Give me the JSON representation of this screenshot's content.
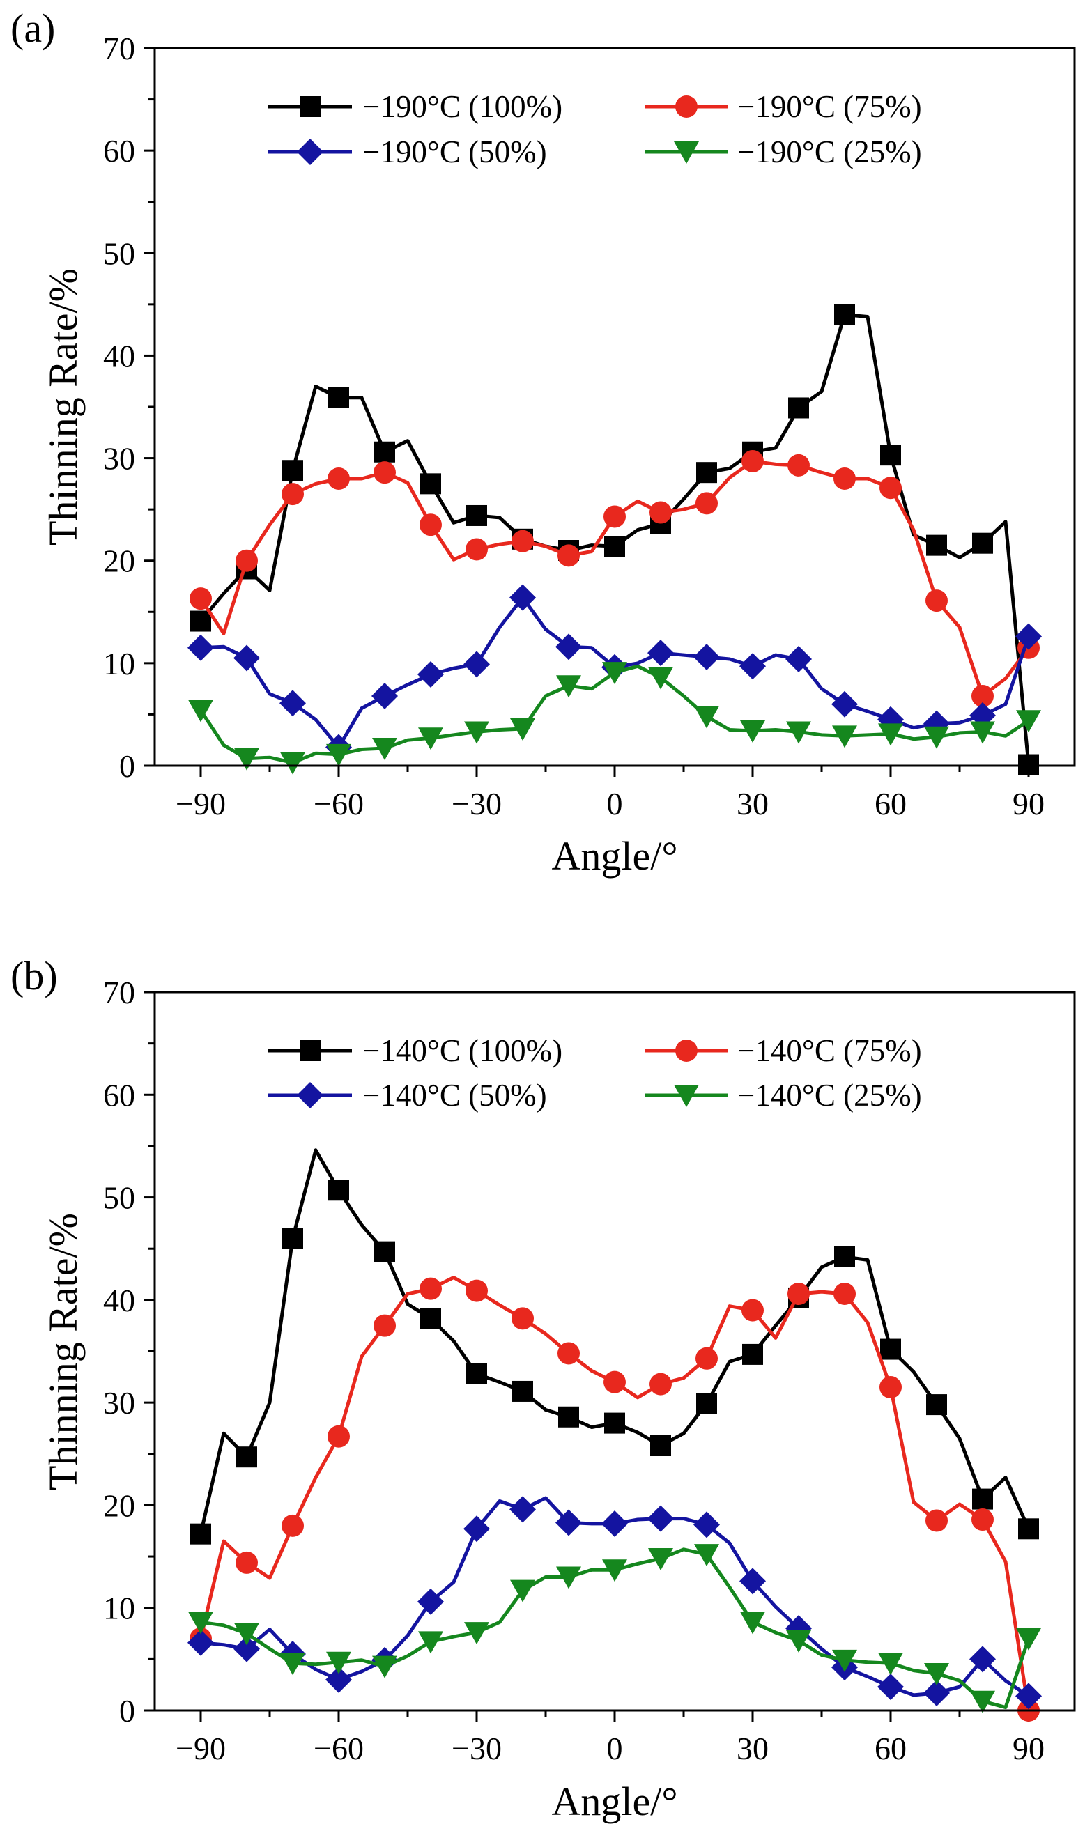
{
  "colors": {
    "series1": "#000000",
    "series2": "#e8281e",
    "series3": "#1414a0",
    "series4": "#15871e"
  },
  "chart_data": [
    {
      "type": "line",
      "panel_label": "(a)",
      "xlabel": "Angle/°",
      "ylabel": "Thinning Rate/%",
      "xlim": [
        -100,
        100
      ],
      "ylim": [
        0,
        70
      ],
      "xticks": [
        -90,
        -60,
        -30,
        0,
        30,
        60,
        90
      ],
      "xtick_labels": [
        "−90",
        "−60",
        "−30",
        "0",
        "30",
        "60",
        "90"
      ],
      "yticks": [
        0,
        10,
        20,
        30,
        40,
        50,
        60,
        70
      ],
      "ytick_labels": [
        "0",
        "10",
        "20",
        "30",
        "40",
        "50",
        "60",
        "70"
      ],
      "legend_position": "top",
      "series": [
        {
          "name": "−190°C (100%)",
          "color": "#000000",
          "marker": "square",
          "x": [
            -90,
            -85,
            -80,
            -75,
            -70,
            -65,
            -60,
            -55,
            -50,
            -45,
            -40,
            -35,
            -30,
            -25,
            -20,
            -15,
            -10,
            -5,
            0,
            5,
            10,
            15,
            20,
            25,
            30,
            35,
            40,
            45,
            50,
            55,
            60,
            65,
            70,
            75,
            80,
            85,
            90
          ],
          "y": [
            14.1,
            16.8,
            19.2,
            17.1,
            28.8,
            37.0,
            35.9,
            35.9,
            30.6,
            31.7,
            27.5,
            23.7,
            24.4,
            24.2,
            22.1,
            21.4,
            21.0,
            21.5,
            21.4,
            23.0,
            23.6,
            26.0,
            28.6,
            29.0,
            30.6,
            31.0,
            34.9,
            36.5,
            44.0,
            43.8,
            30.3,
            22.5,
            21.5,
            20.3,
            21.7,
            23.8,
            0.1
          ],
          "marker_x": [
            -90,
            -80,
            -70,
            -60,
            -50,
            -40,
            -30,
            -20,
            -10,
            0,
            10,
            20,
            30,
            40,
            50,
            60,
            70,
            80,
            90
          ]
        },
        {
          "name": "−190°C (75%)",
          "color": "#e8281e",
          "marker": "circle",
          "x": [
            -90,
            -85,
            -80,
            -75,
            -70,
            -65,
            -60,
            -55,
            -50,
            -45,
            -40,
            -35,
            -30,
            -25,
            -20,
            -15,
            -10,
            -5,
            0,
            5,
            10,
            15,
            20,
            25,
            30,
            35,
            40,
            45,
            50,
            55,
            60,
            65,
            70,
            75,
            80,
            85,
            90
          ],
          "y": [
            16.3,
            12.9,
            20.0,
            23.5,
            26.5,
            27.5,
            28.0,
            28.0,
            28.6,
            27.6,
            23.5,
            20.1,
            21.1,
            21.6,
            21.9,
            21.4,
            20.5,
            20.9,
            24.3,
            25.8,
            24.7,
            25.0,
            25.6,
            28.1,
            29.7,
            29.4,
            29.3,
            28.6,
            28.0,
            28.0,
            27.1,
            23.0,
            16.1,
            13.5,
            6.8,
            8.5,
            11.5
          ],
          "marker_x": [
            -90,
            -80,
            -70,
            -60,
            -50,
            -40,
            -30,
            -20,
            -10,
            0,
            10,
            20,
            30,
            40,
            50,
            60,
            70,
            80,
            90
          ]
        },
        {
          "name": "−190°C (50%)",
          "color": "#1414a0",
          "marker": "diamond",
          "x": [
            -90,
            -85,
            -80,
            -75,
            -70,
            -65,
            -60,
            -55,
            -50,
            -45,
            -40,
            -35,
            -30,
            -25,
            -20,
            -15,
            -10,
            -5,
            0,
            5,
            10,
            15,
            20,
            25,
            30,
            35,
            40,
            45,
            50,
            55,
            60,
            65,
            70,
            75,
            80,
            85,
            90
          ],
          "y": [
            11.5,
            11.6,
            10.5,
            7.0,
            6.1,
            4.5,
            1.8,
            5.6,
            6.8,
            7.9,
            8.9,
            9.5,
            9.9,
            13.5,
            16.4,
            13.3,
            11.6,
            11.5,
            9.6,
            10.0,
            11.0,
            10.8,
            10.6,
            10.4,
            9.7,
            10.8,
            10.4,
            7.5,
            6.0,
            5.3,
            4.5,
            3.7,
            4.1,
            4.2,
            4.9,
            6.0,
            12.6
          ],
          "marker_x": [
            -90,
            -80,
            -70,
            -60,
            -50,
            -40,
            -30,
            -20,
            -10,
            0,
            10,
            20,
            30,
            40,
            50,
            60,
            70,
            80,
            90
          ]
        },
        {
          "name": "−190°C (25%)",
          "color": "#15871e",
          "marker": "triangle-down",
          "x": [
            -90,
            -85,
            -80,
            -75,
            -70,
            -65,
            -60,
            -55,
            -50,
            -45,
            -40,
            -35,
            -30,
            -25,
            -20,
            -15,
            -10,
            -5,
            0,
            5,
            10,
            15,
            20,
            25,
            30,
            35,
            40,
            45,
            50,
            55,
            60,
            65,
            70,
            75,
            80,
            85,
            90
          ],
          "y": [
            5.4,
            2.0,
            0.7,
            0.8,
            0.3,
            1.2,
            1.1,
            1.6,
            1.7,
            2.5,
            2.7,
            3.0,
            3.3,
            3.5,
            3.6,
            6.8,
            7.8,
            7.5,
            9.1,
            9.7,
            8.6,
            6.8,
            4.8,
            3.5,
            3.4,
            3.5,
            3.3,
            3.0,
            2.9,
            3.0,
            3.1,
            2.6,
            2.8,
            3.2,
            3.3,
            2.9,
            4.4
          ],
          "marker_x": [
            -90,
            -80,
            -70,
            -60,
            -50,
            -40,
            -30,
            -20,
            -10,
            0,
            10,
            20,
            30,
            40,
            50,
            60,
            70,
            80,
            90
          ]
        }
      ]
    },
    {
      "type": "line",
      "panel_label": "(b)",
      "xlabel": "Angle/°",
      "ylabel": "Thinning Rate/%",
      "xlim": [
        -100,
        100
      ],
      "ylim": [
        0,
        70
      ],
      "xticks": [
        -90,
        -60,
        -30,
        0,
        30,
        60,
        90
      ],
      "xtick_labels": [
        "−90",
        "−60",
        "−30",
        "0",
        "30",
        "60",
        "90"
      ],
      "yticks": [
        0,
        10,
        20,
        30,
        40,
        50,
        60,
        70
      ],
      "ytick_labels": [
        "0",
        "10",
        "20",
        "30",
        "40",
        "50",
        "60",
        "70"
      ],
      "legend_position": "top",
      "series": [
        {
          "name": "−140°C (100%)",
          "color": "#000000",
          "marker": "square",
          "x": [
            -90,
            -85,
            -80,
            -75,
            -70,
            -65,
            -60,
            -55,
            -50,
            -45,
            -40,
            -35,
            -30,
            -25,
            -20,
            -15,
            -10,
            -5,
            0,
            5,
            10,
            15,
            20,
            25,
            30,
            35,
            40,
            45,
            50,
            55,
            60,
            65,
            70,
            75,
            80,
            85,
            90
          ],
          "y": [
            17.2,
            27.0,
            24.7,
            30.0,
            46.0,
            54.6,
            50.7,
            47.3,
            44.7,
            39.6,
            38.2,
            36.0,
            32.8,
            32.0,
            31.1,
            29.3,
            28.6,
            27.6,
            28.0,
            27.1,
            25.8,
            27.0,
            29.9,
            34.0,
            34.7,
            37.5,
            40.2,
            43.2,
            44.2,
            43.9,
            35.2,
            33.0,
            29.8,
            26.5,
            20.6,
            22.7,
            17.7
          ],
          "marker_x": [
            -90,
            -80,
            -70,
            -60,
            -50,
            -40,
            -30,
            -20,
            -10,
            0,
            10,
            20,
            30,
            40,
            50,
            60,
            70,
            80,
            90
          ]
        },
        {
          "name": "−140°C (75%)",
          "color": "#e8281e",
          "marker": "circle",
          "x": [
            -90,
            -85,
            -80,
            -75,
            -70,
            -65,
            -60,
            -55,
            -50,
            -45,
            -40,
            -35,
            -30,
            -25,
            -20,
            -15,
            -10,
            -5,
            0,
            5,
            10,
            15,
            20,
            25,
            30,
            35,
            40,
            45,
            50,
            55,
            60,
            65,
            70,
            75,
            80,
            85,
            90
          ],
          "y": [
            7.0,
            16.5,
            14.4,
            12.9,
            18.0,
            22.7,
            26.7,
            34.5,
            37.5,
            40.6,
            41.1,
            42.2,
            40.9,
            39.5,
            38.2,
            36.7,
            34.8,
            33.1,
            32.0,
            30.5,
            31.8,
            32.4,
            34.3,
            39.4,
            39.0,
            36.3,
            40.6,
            40.8,
            40.6,
            37.8,
            31.5,
            20.3,
            18.5,
            20.1,
            18.6,
            14.5,
            0.0
          ],
          "marker_x": [
            -90,
            -80,
            -70,
            -60,
            -50,
            -40,
            -30,
            -20,
            -10,
            0,
            10,
            20,
            30,
            40,
            50,
            60,
            70,
            80,
            90
          ]
        },
        {
          "name": "−140°C (50%)",
          "color": "#1414a0",
          "marker": "diamond",
          "x": [
            -90,
            -85,
            -80,
            -75,
            -70,
            -65,
            -60,
            -55,
            -50,
            -45,
            -40,
            -35,
            -30,
            -25,
            -20,
            -15,
            -10,
            -5,
            0,
            5,
            10,
            15,
            20,
            25,
            30,
            35,
            40,
            45,
            50,
            55,
            60,
            65,
            70,
            75,
            80,
            85,
            90
          ],
          "y": [
            6.6,
            6.4,
            6.0,
            7.9,
            5.5,
            4.0,
            3.0,
            3.8,
            4.9,
            7.3,
            10.6,
            12.5,
            17.7,
            20.4,
            19.6,
            20.7,
            18.3,
            18.2,
            18.2,
            18.6,
            18.7,
            18.7,
            18.1,
            16.3,
            12.6,
            10.1,
            8.0,
            6.0,
            4.2,
            3.3,
            2.3,
            1.5,
            1.7,
            2.3,
            5.0,
            2.9,
            1.4
          ],
          "marker_x": [
            -90,
            -80,
            -70,
            -60,
            -50,
            -40,
            -30,
            -20,
            -10,
            0,
            10,
            20,
            30,
            40,
            50,
            60,
            70,
            80,
            90
          ]
        },
        {
          "name": "−140°C (25%)",
          "color": "#15871e",
          "marker": "triangle-down",
          "x": [
            -90,
            -85,
            -80,
            -75,
            -70,
            -65,
            -60,
            -55,
            -50,
            -45,
            -40,
            -35,
            -30,
            -25,
            -20,
            -15,
            -10,
            -5,
            0,
            5,
            10,
            15,
            20,
            25,
            30,
            35,
            40,
            45,
            50,
            55,
            60,
            65,
            70,
            75,
            80,
            85,
            90
          ],
          "y": [
            8.6,
            8.3,
            7.5,
            6.0,
            4.6,
            4.5,
            4.7,
            4.9,
            4.3,
            5.3,
            6.7,
            7.2,
            7.6,
            8.6,
            11.7,
            13.0,
            13.0,
            13.7,
            13.7,
            14.3,
            14.8,
            15.7,
            15.2,
            12.0,
            8.6,
            7.6,
            6.8,
            5.4,
            4.9,
            4.7,
            4.6,
            3.9,
            3.6,
            2.9,
            0.9,
            0.3,
            7.0
          ],
          "marker_x": [
            -90,
            -80,
            -70,
            -60,
            -50,
            -40,
            -30,
            -20,
            -10,
            0,
            10,
            20,
            30,
            40,
            50,
            60,
            70,
            80,
            90
          ]
        }
      ]
    }
  ]
}
